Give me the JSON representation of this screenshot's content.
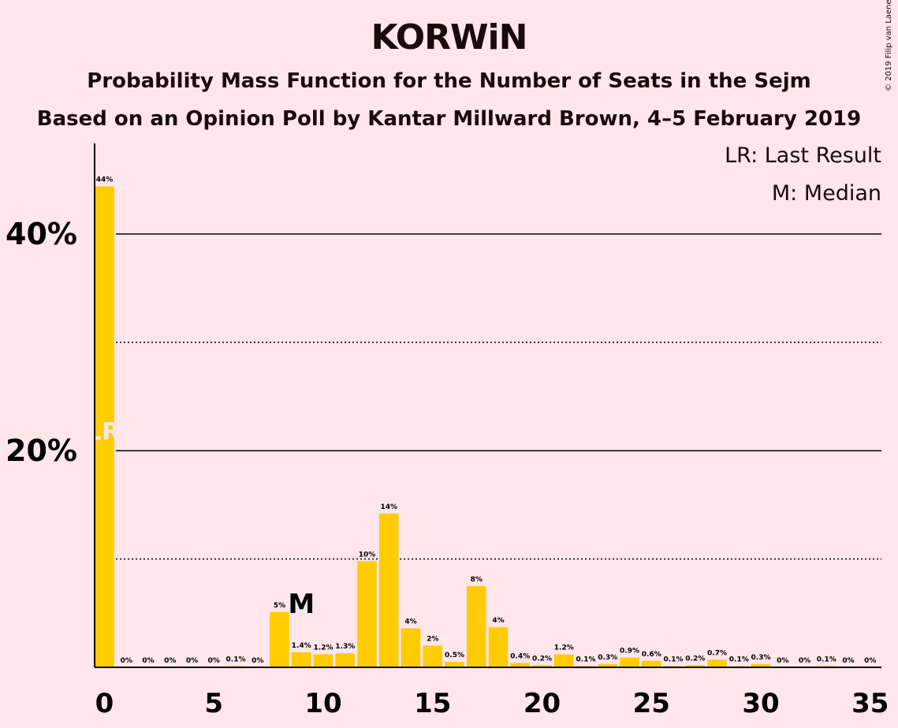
{
  "title": "KORWiN",
  "subtitle1": "Probability Mass Function for the Number of Seats in the Sejm",
  "subtitle2": "Based on an Opinion Poll by Kantar Millward Brown, 4–5 February 2019",
  "copyright": "© 2019 Filip van Laenen",
  "legend": {
    "last_result": "LR: Last Result",
    "median": "M: Median"
  },
  "chart_data": {
    "type": "bar",
    "x": [
      0,
      1,
      2,
      3,
      4,
      5,
      6,
      7,
      8,
      9,
      10,
      11,
      12,
      13,
      14,
      15,
      16,
      17,
      18,
      19,
      20,
      21,
      22,
      23,
      24,
      25,
      26,
      27,
      28,
      29,
      30,
      31,
      32,
      33,
      34,
      35
    ],
    "values": [
      44.4,
      0,
      0,
      0,
      0,
      0,
      0.1,
      0,
      5.1,
      1.4,
      1.2,
      1.3,
      9.8,
      14.2,
      3.6,
      2.0,
      0.5,
      7.5,
      3.7,
      0.4,
      0.2,
      1.2,
      0.1,
      0.3,
      0.9,
      0.6,
      0.1,
      0.2,
      0.7,
      0.1,
      0.3,
      0,
      0,
      0.1,
      0,
      0
    ],
    "labels": [
      "44%",
      "0%",
      "0%",
      "0%",
      "0%",
      "0%",
      "0.1%",
      "0%",
      "5%",
      "1.4%",
      "1.2%",
      "1.3%",
      "10%",
      "14%",
      "4%",
      "2%",
      "0.5%",
      "8%",
      "4%",
      "0.4%",
      "0.2%",
      "1.2%",
      "0.1%",
      "0.3%",
      "0.9%",
      "0.6%",
      "0.1%",
      "0.2%",
      "0.7%",
      "0.1%",
      "0.3%",
      "0%",
      "0%",
      "0.1%",
      "0%",
      "0%"
    ],
    "xticks": [
      0,
      5,
      10,
      15,
      20,
      25,
      30,
      35
    ],
    "xtick_labels": [
      "0",
      "5",
      "10",
      "15",
      "20",
      "25",
      "30",
      "35"
    ],
    "yticks_labeled": [
      20,
      40
    ],
    "ytick_labels": [
      "20%",
      "40%"
    ],
    "ygrid_dotted": [
      10,
      30
    ],
    "ylim": [
      0,
      48
    ],
    "last_result_seat": 0,
    "last_result_marker": "LR",
    "median_seat": 9,
    "median_marker": "M",
    "bar_color": "#FFCC00",
    "lr_text_color": "#FFE6EA"
  }
}
